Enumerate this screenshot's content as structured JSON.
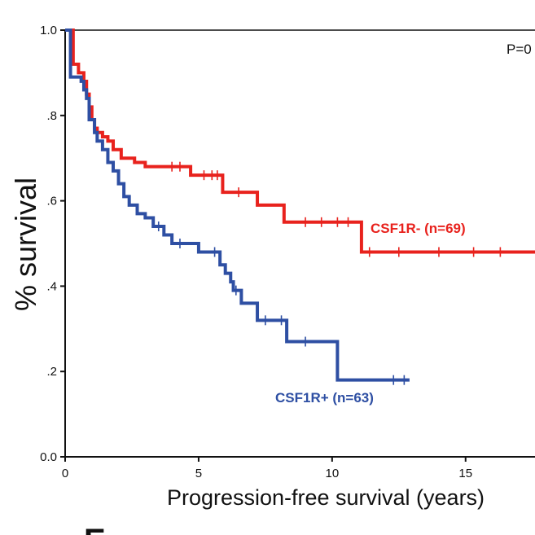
{
  "chart_data": {
    "type": "line",
    "xlabel": "Progression-free survival (years)",
    "ylabel": "% survival",
    "xlim": [
      0,
      17.6
    ],
    "ylim": [
      0.0,
      1.0
    ],
    "x_ticks": [
      0,
      5,
      10,
      15
    ],
    "x_tick_labels": [
      "0",
      "5",
      "10",
      "15"
    ],
    "y_ticks": [
      0.0,
      0.2,
      0.4,
      0.6,
      0.8,
      1.0
    ],
    "y_tick_labels": [
      "0.0",
      ".2",
      ".4",
      ".6",
      ".8",
      "1.0"
    ],
    "p_value_text": "P=0",
    "panel_label": "E",
    "series": [
      {
        "name": "CSF1R- (n=69)",
        "color": "#e8221d",
        "steps": [
          [
            0.0,
            1.0
          ],
          [
            0.3,
            0.92
          ],
          [
            0.5,
            0.9
          ],
          [
            0.7,
            0.88
          ],
          [
            0.8,
            0.85
          ],
          [
            0.9,
            0.82
          ],
          [
            1.0,
            0.79
          ],
          [
            1.1,
            0.77
          ],
          [
            1.2,
            0.76
          ],
          [
            1.4,
            0.75
          ],
          [
            1.6,
            0.74
          ],
          [
            1.8,
            0.72
          ],
          [
            2.1,
            0.7
          ],
          [
            2.6,
            0.69
          ],
          [
            3.0,
            0.68
          ],
          [
            4.7,
            0.66
          ],
          [
            5.9,
            0.62
          ],
          [
            7.2,
            0.59
          ],
          [
            8.2,
            0.55
          ],
          [
            11.1,
            0.48
          ],
          [
            17.6,
            0.48
          ]
        ],
        "censor_x": [
          4.0,
          4.3,
          5.2,
          5.5,
          5.7,
          6.5,
          9.0,
          9.6,
          10.2,
          10.6,
          11.4,
          12.5,
          14.0,
          15.3,
          16.3
        ]
      },
      {
        "name": "CSF1R+ (n=63)",
        "color": "#2e4fa3",
        "steps": [
          [
            0.0,
            1.0
          ],
          [
            0.2,
            0.89
          ],
          [
            0.6,
            0.88
          ],
          [
            0.7,
            0.86
          ],
          [
            0.8,
            0.84
          ],
          [
            0.9,
            0.79
          ],
          [
            1.1,
            0.76
          ],
          [
            1.2,
            0.74
          ],
          [
            1.4,
            0.72
          ],
          [
            1.6,
            0.69
          ],
          [
            1.8,
            0.67
          ],
          [
            2.0,
            0.64
          ],
          [
            2.2,
            0.61
          ],
          [
            2.4,
            0.59
          ],
          [
            2.7,
            0.57
          ],
          [
            3.0,
            0.56
          ],
          [
            3.3,
            0.54
          ],
          [
            3.7,
            0.52
          ],
          [
            4.0,
            0.5
          ],
          [
            5.0,
            0.48
          ],
          [
            5.8,
            0.45
          ],
          [
            6.0,
            0.43
          ],
          [
            6.2,
            0.41
          ],
          [
            6.3,
            0.39
          ],
          [
            6.6,
            0.36
          ],
          [
            7.2,
            0.32
          ],
          [
            8.3,
            0.27
          ],
          [
            10.2,
            0.18
          ],
          [
            12.9,
            0.18
          ]
        ],
        "censor_x": [
          3.5,
          4.3,
          5.6,
          6.4,
          7.5,
          8.1,
          9.0,
          12.3,
          12.7
        ]
      }
    ]
  }
}
